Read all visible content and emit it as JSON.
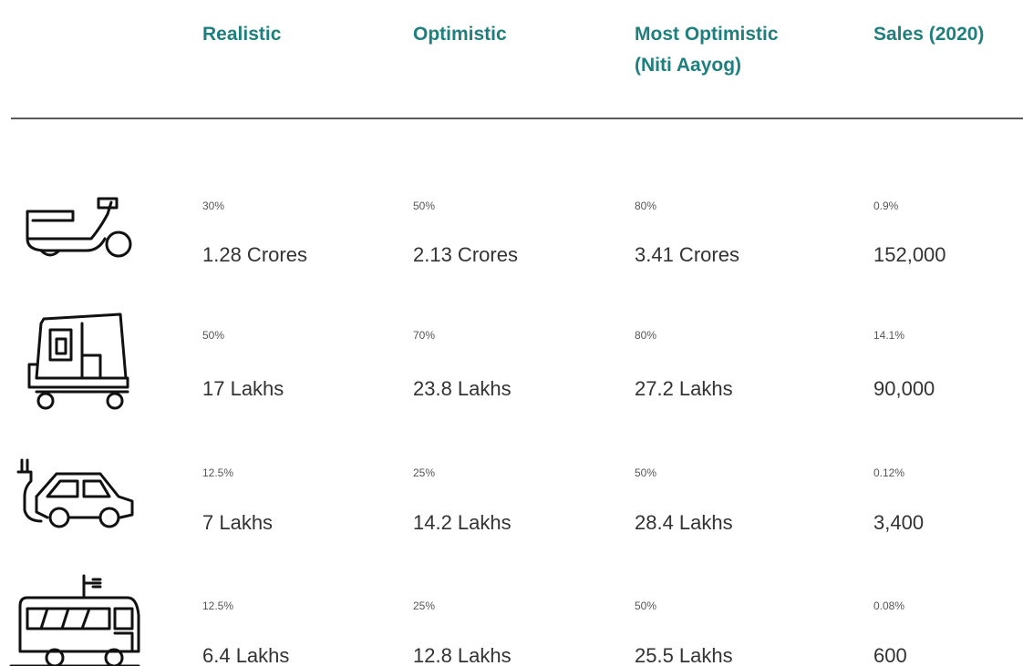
{
  "header": {
    "columns": [
      [
        "Realistic"
      ],
      [
        "Optimistic"
      ],
      [
        "Most Optimistic",
        "(Niti Aayog)"
      ],
      [
        "Sales (2020)"
      ]
    ]
  },
  "table": {
    "rows": [
      [
        {
          "share": "30%",
          "value": "1.28 Crores"
        },
        {
          "share": "50%",
          "value": "2.13 Crores"
        },
        {
          "share": "80%",
          "value": "3.41 Crores"
        },
        {
          "share": "0.9%",
          "value": "152,000"
        }
      ],
      [
        {
          "share": "50%",
          "value": "17 Lakhs"
        },
        {
          "share": "70%",
          "value": "23.8 Lakhs"
        },
        {
          "share": "80%",
          "value": "27.2 Lakhs"
        },
        {
          "share": "14.1%",
          "value": "90,000"
        }
      ],
      [
        {
          "share": "12.5%",
          "value": "7 Lakhs"
        },
        {
          "share": "25%",
          "value": "14.2 Lakhs"
        },
        {
          "share": "50%",
          "value": "28.4 Lakhs"
        },
        {
          "share": "0.12%",
          "value": "3,400"
        }
      ],
      [
        {
          "share": "12.5%",
          "value": "6.4 Lakhs"
        },
        {
          "share": "25%",
          "value": "12.8 Lakhs"
        },
        {
          "share": "50%",
          "value": "25.5 Lakhs"
        },
        {
          "share": "0.08%",
          "value": "600"
        }
      ]
    ]
  }
}
